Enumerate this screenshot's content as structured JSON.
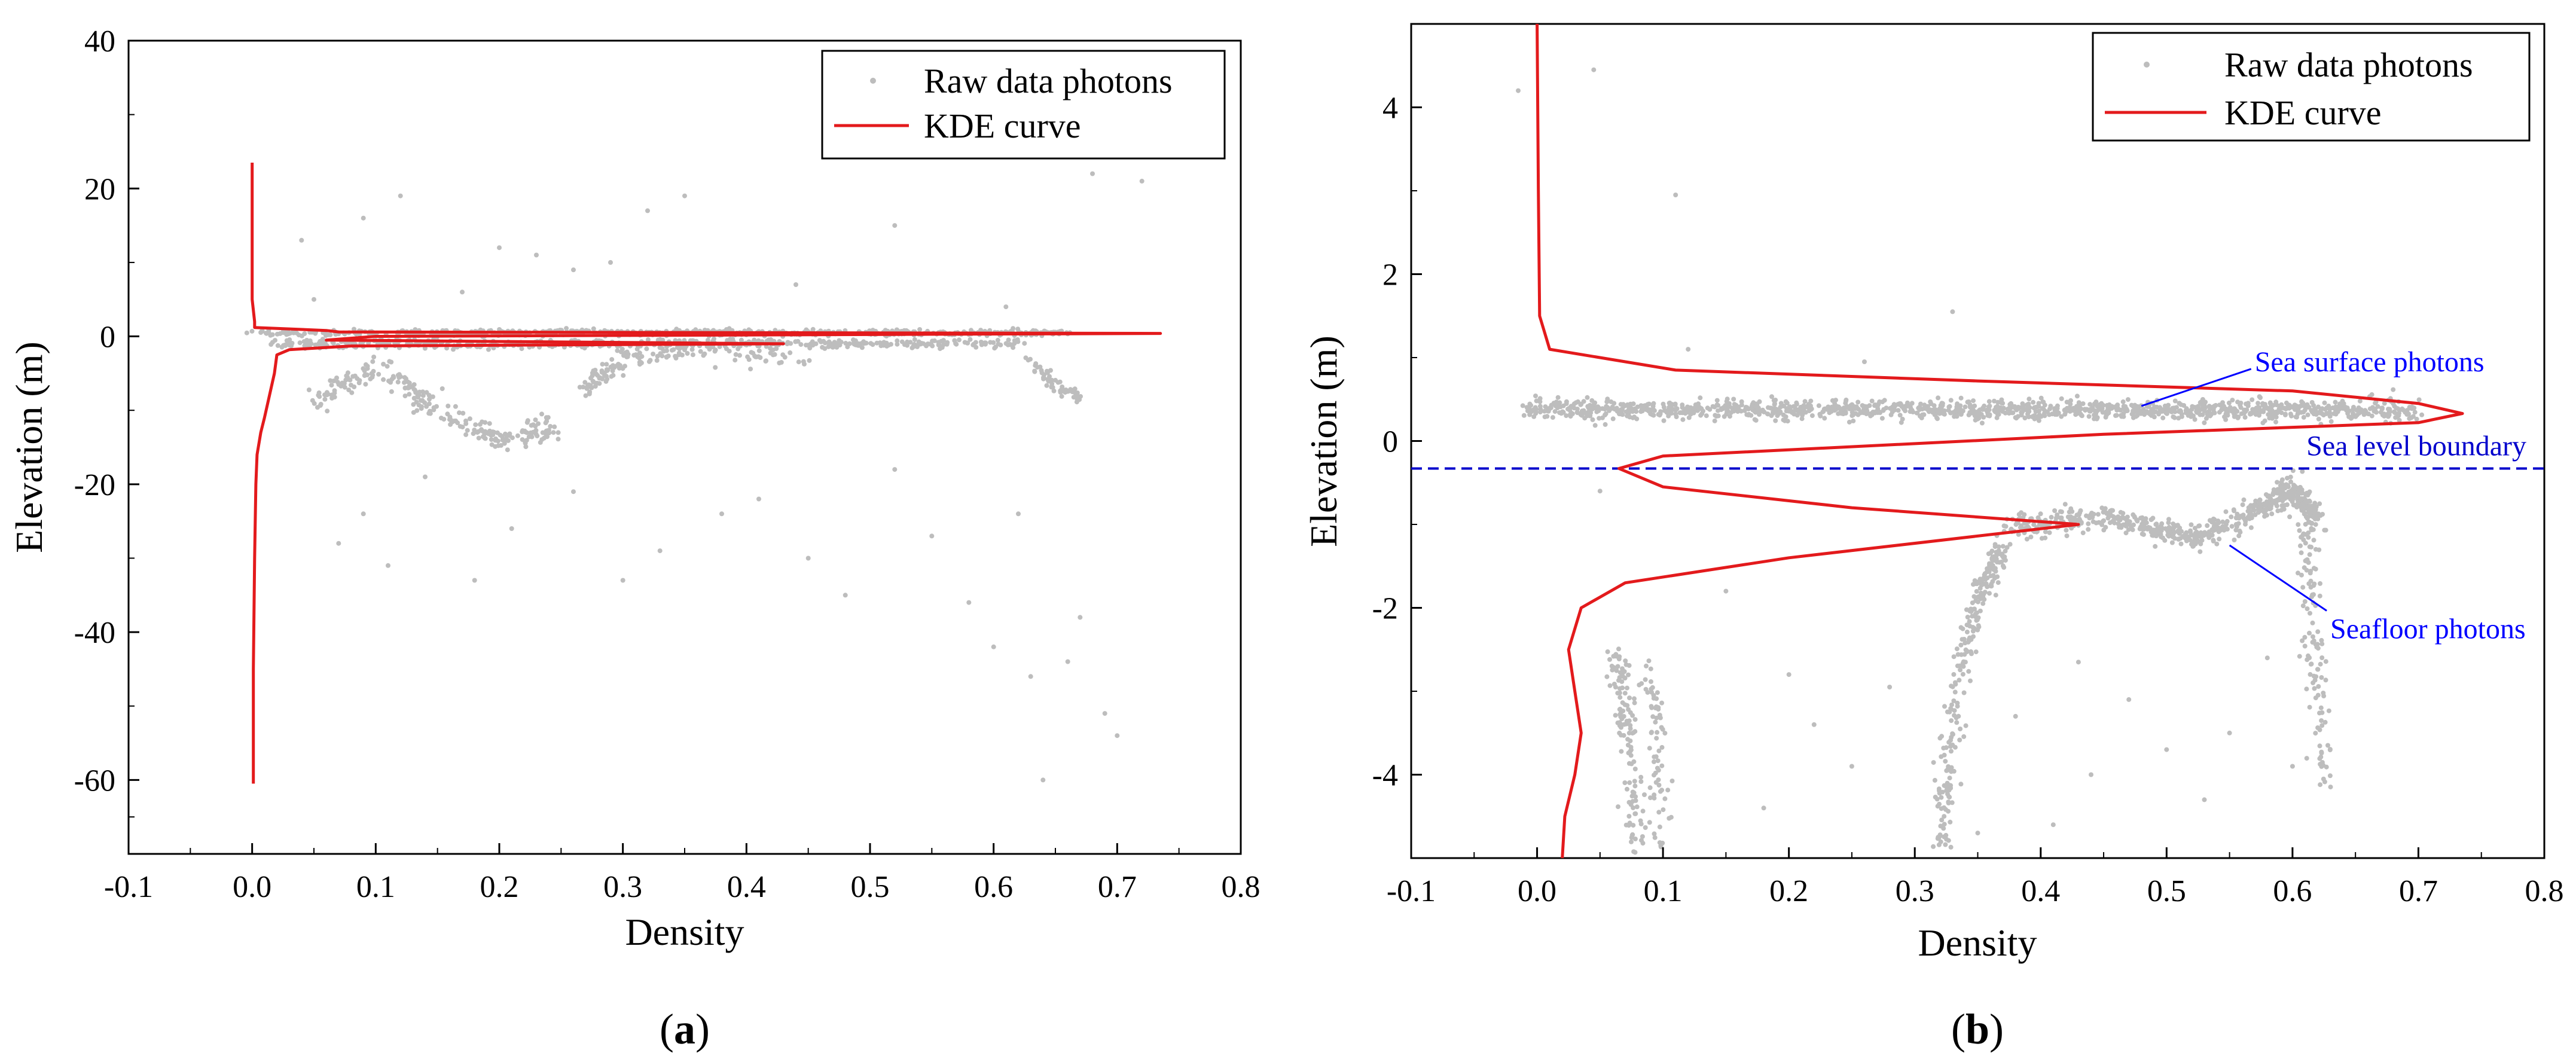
{
  "chart_data": [
    {
      "panel": "a",
      "panel_label_open": "(",
      "panel_label_letter": "a",
      "panel_label_close": ")",
      "type": "scatter",
      "title": "",
      "xlabel": "Density",
      "ylabel": "Elevation (m)",
      "xlim": [
        -0.1,
        0.8
      ],
      "ylim": [
        -70,
        40
      ],
      "xticks": [
        -0.1,
        0.0,
        0.1,
        0.2,
        0.3,
        0.4,
        0.5,
        0.6,
        0.7,
        0.8
      ],
      "xtick_labels": [
        "-0.1",
        "0.0",
        "0.1",
        "0.2",
        "0.3",
        "0.4",
        "0.5",
        "0.6",
        "0.7",
        "0.8"
      ],
      "yticks": [
        -60,
        -40,
        -20,
        0,
        20,
        40
      ],
      "ytick_labels": [
        "-60",
        "-40",
        "-20",
        "0",
        "20",
        "40"
      ],
      "grid": false,
      "legend_position": "top-right",
      "series": [
        {
          "name": "Raw data photons",
          "kind": "scatter",
          "color": "#bdbdbd",
          "ridges": [
            {
              "x": [
                0.0,
                0.66
              ],
              "y": [
                0.5,
                0.5
              ],
              "spread": 0.4,
              "n": 600
            },
            {
              "x": [
                0.02,
                0.62
              ],
              "y": [
                -1.0,
                -1.0
              ],
              "spread": 0.6,
              "n": 500
            },
            {
              "x": [
                0.05,
                0.1,
                0.15,
                0.2,
                0.25
              ],
              "y": [
                -9,
                -4,
                -10,
                -14,
                -12
              ],
              "spread": 1.5,
              "n": 250
            },
            {
              "x": [
                0.27,
                0.3,
                0.35,
                0.45
              ],
              "y": [
                -7,
                -3,
                -2,
                -3
              ],
              "spread": 1.5,
              "n": 150
            },
            {
              "x": [
                0.63,
                0.65,
                0.67
              ],
              "y": [
                -3,
                -7,
                -8
              ],
              "spread": 1.0,
              "n": 60
            }
          ],
          "outliers": [
            {
              "x": 0.09,
              "y": 16
            },
            {
              "x": 0.12,
              "y": 19
            },
            {
              "x": 0.04,
              "y": 13
            },
            {
              "x": 0.2,
              "y": 12
            },
            {
              "x": 0.23,
              "y": 11
            },
            {
              "x": 0.26,
              "y": 9
            },
            {
              "x": 0.32,
              "y": 17
            },
            {
              "x": 0.35,
              "y": 19
            },
            {
              "x": 0.52,
              "y": 15
            },
            {
              "x": 0.68,
              "y": 22
            },
            {
              "x": 0.72,
              "y": 21
            },
            {
              "x": 0.29,
              "y": 10
            },
            {
              "x": 0.17,
              "y": 6
            },
            {
              "x": 0.44,
              "y": 7
            },
            {
              "x": 0.61,
              "y": 4
            },
            {
              "x": 0.05,
              "y": 5
            },
            {
              "x": 0.07,
              "y": -28
            },
            {
              "x": 0.11,
              "y": -31
            },
            {
              "x": 0.18,
              "y": -33
            },
            {
              "x": 0.21,
              "y": -26
            },
            {
              "x": 0.33,
              "y": -29
            },
            {
              "x": 0.41,
              "y": -22
            },
            {
              "x": 0.48,
              "y": -35
            },
            {
              "x": 0.55,
              "y": -27
            },
            {
              "x": 0.6,
              "y": -42
            },
            {
              "x": 0.63,
              "y": -46
            },
            {
              "x": 0.66,
              "y": -44
            },
            {
              "x": 0.69,
              "y": -51
            },
            {
              "x": 0.7,
              "y": -54
            },
            {
              "x": 0.64,
              "y": -60
            },
            {
              "x": 0.67,
              "y": -38
            },
            {
              "x": 0.58,
              "y": -36
            },
            {
              "x": 0.38,
              "y": -24
            },
            {
              "x": 0.26,
              "y": -21
            },
            {
              "x": 0.14,
              "y": -19
            },
            {
              "x": 0.09,
              "y": -24
            },
            {
              "x": 0.3,
              "y": -33
            },
            {
              "x": 0.45,
              "y": -30
            },
            {
              "x": 0.52,
              "y": -18
            },
            {
              "x": 0.62,
              "y": -24
            }
          ]
        },
        {
          "name": "KDE curve",
          "kind": "line",
          "color": "#e31a1c",
          "x": [
            0.0,
            0.0,
            0.002,
            0.002,
            0.06,
            0.07,
            0.735,
            0.1,
            0.06,
            0.43,
            0.08,
            0.03,
            0.02,
            0.018,
            0.014,
            0.01,
            0.007,
            0.004,
            0.003,
            0.002,
            0.001,
            0.001
          ],
          "y": [
            23.5,
            5,
            2,
            1.2,
            0.8,
            0.6,
            0.4,
            0.0,
            -0.5,
            -1.0,
            -1.3,
            -1.8,
            -2.5,
            -5,
            -8,
            -11,
            -13,
            -16,
            -20,
            -30,
            -45,
            -60.5
          ]
        }
      ]
    },
    {
      "panel": "b",
      "panel_label_open": "(",
      "panel_label_letter": "b",
      "panel_label_close": ")",
      "type": "scatter",
      "title": "",
      "xlabel": "Density",
      "ylabel": "Elevation (m)",
      "xlim": [
        -0.1,
        0.8
      ],
      "ylim": [
        -5,
        5
      ],
      "xticks": [
        -0.1,
        0.0,
        0.1,
        0.2,
        0.3,
        0.4,
        0.5,
        0.6,
        0.7,
        0.8
      ],
      "xtick_labels": [
        "-0.1",
        "0.0",
        "0.1",
        "0.2",
        "0.3",
        "0.4",
        "0.5",
        "0.6",
        "0.7",
        "0.8"
      ],
      "yticks": [
        -4,
        -2,
        0,
        2,
        4
      ],
      "ytick_labels": [
        "-4",
        "-2",
        "0",
        "2",
        "4"
      ],
      "grid": false,
      "legend_position": "top-right",
      "boundary": {
        "y": -0.33,
        "label": "Sea level boundary",
        "color": "#0000cc"
      },
      "annotations": [
        {
          "text": "Sea surface photons",
          "color": "#0000ff",
          "point": [
            0.48,
            0.42
          ],
          "text_at": [
            0.57,
            0.95
          ]
        },
        {
          "text": "Seafloor photons",
          "color": "#0000ff",
          "point": [
            0.55,
            -1.25
          ],
          "text_at": [
            0.63,
            -2.25
          ]
        }
      ],
      "series": [
        {
          "name": "Raw data photons",
          "kind": "scatter",
          "color": "#bdbdbd",
          "ridges": [
            {
              "x": [
                -0.01,
                0.7
              ],
              "y": [
                0.38,
                0.36
              ],
              "spread": 0.12,
              "n": 1300
            },
            {
              "x": [
                0.37,
                0.45,
                0.52,
                0.57,
                0.6,
                0.62
              ],
              "y": [
                -1.05,
                -0.9,
                -1.15,
                -0.85,
                -0.55,
                -1.0
              ],
              "spread": 0.14,
              "n": 650
            },
            {
              "x": [
                0.32,
                0.33,
                0.35,
                0.37
              ],
              "y": [
                -4.9,
                -3.3,
                -1.9,
                -1.25
              ],
              "spread": 0.06,
              "n": 260
            },
            {
              "x": [
                0.61,
                0.615,
                0.62,
                0.625
              ],
              "y": [
                -1.0,
                -2.0,
                -3.2,
                -4.2
              ],
              "spread": 0.06,
              "n": 120
            },
            {
              "x": [
                0.065,
                0.07,
                0.075,
                0.08
              ],
              "y": [
                -2.5,
                -3.2,
                -4.0,
                -4.9
              ],
              "spread": 0.08,
              "n": 130
            },
            {
              "x": [
                0.09,
                0.095,
                0.1
              ],
              "y": [
                -2.6,
                -3.6,
                -4.9
              ],
              "spread": 0.06,
              "n": 70
            }
          ],
          "outliers": [
            {
              "x": 0.045,
              "y": 4.45
            },
            {
              "x": -0.015,
              "y": 4.2
            },
            {
              "x": 0.11,
              "y": 2.95
            },
            {
              "x": 0.33,
              "y": 1.55
            },
            {
              "x": 0.2,
              "y": -2.8
            },
            {
              "x": 0.22,
              "y": -3.4
            },
            {
              "x": 0.25,
              "y": -3.9
            },
            {
              "x": 0.28,
              "y": -2.95
            },
            {
              "x": 0.43,
              "y": -2.65
            },
            {
              "x": 0.47,
              "y": -3.1
            },
            {
              "x": 0.5,
              "y": -3.7
            },
            {
              "x": 0.53,
              "y": -4.3
            },
            {
              "x": 0.55,
              "y": -3.5
            },
            {
              "x": 0.58,
              "y": -2.6
            },
            {
              "x": 0.41,
              "y": -4.6
            },
            {
              "x": 0.38,
              "y": -3.3
            },
            {
              "x": 0.15,
              "y": -1.8
            },
            {
              "x": 0.05,
              "y": -0.6
            },
            {
              "x": 0.12,
              "y": 1.1
            },
            {
              "x": 0.26,
              "y": 0.95
            },
            {
              "x": 0.44,
              "y": -4.0
            },
            {
              "x": 0.6,
              "y": -3.9
            },
            {
              "x": 0.35,
              "y": -4.7
            },
            {
              "x": 0.18,
              "y": -4.4
            }
          ]
        },
        {
          "name": "KDE curve",
          "kind": "line",
          "color": "#e31a1c",
          "x": [
            0.0,
            0.001,
            0.002,
            0.01,
            0.11,
            0.35,
            0.6,
            0.7,
            0.735,
            0.7,
            0.45,
            0.1,
            0.065,
            0.1,
            0.25,
            0.43,
            0.2,
            0.07,
            0.035,
            0.025,
            0.03,
            0.035,
            0.03,
            0.022,
            0.02
          ],
          "y": [
            5.0,
            3.0,
            1.5,
            1.1,
            0.85,
            0.72,
            0.6,
            0.45,
            0.33,
            0.22,
            0.08,
            -0.18,
            -0.33,
            -0.55,
            -0.8,
            -1.0,
            -1.4,
            -1.7,
            -2.0,
            -2.5,
            -3.0,
            -3.5,
            -4.0,
            -4.5,
            -5.0
          ]
        }
      ]
    }
  ]
}
